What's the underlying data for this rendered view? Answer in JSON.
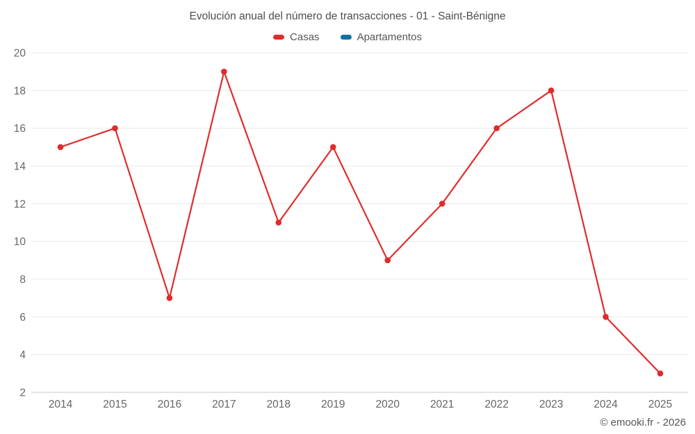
{
  "chart_data": {
    "type": "line",
    "title": "Evolución anual del número de transacciones - 01 - Saint-Bénigne",
    "categories": [
      "2014",
      "2015",
      "2016",
      "2017",
      "2018",
      "2019",
      "2020",
      "2021",
      "2022",
      "2023",
      "2024",
      "2025"
    ],
    "series": [
      {
        "name": "Casas",
        "color": "#e02b2b",
        "values": [
          15,
          16,
          7,
          19,
          11,
          15,
          9,
          12,
          16,
          18,
          6,
          3
        ]
      },
      {
        "name": "Apartamentos",
        "color": "#1372a0",
        "values": []
      }
    ],
    "xlabel": "",
    "ylabel": "",
    "ylim": [
      2,
      20
    ],
    "ytick_step": 2,
    "grid": true,
    "legend_position": "top",
    "marker": "circle",
    "colors": {
      "grid_line": "#e8e8e8",
      "axis_line": "#c9c9c9",
      "tick_label": "#666666",
      "title_text": "#4d4d4d",
      "legend_text": "#555555"
    }
  },
  "footer": {
    "credit": "© emooki.fr - 2026"
  }
}
